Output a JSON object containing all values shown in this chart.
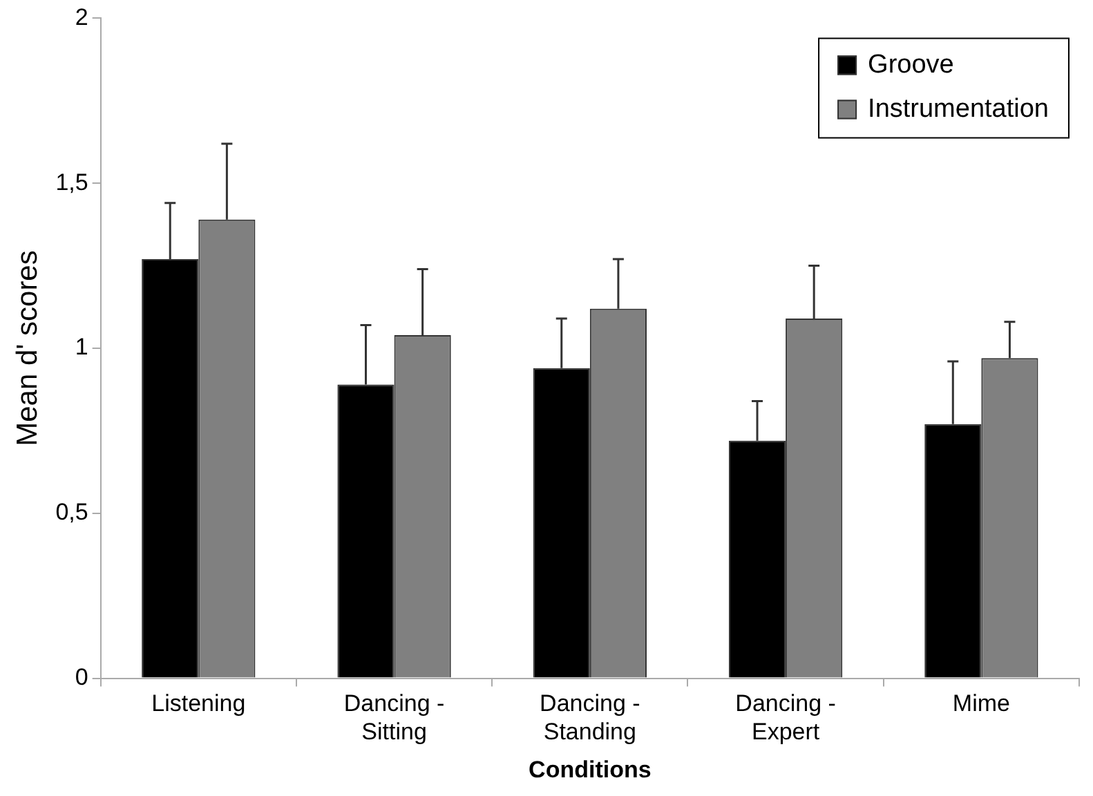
{
  "chart_data": {
    "type": "bar",
    "xlabel": "Conditions",
    "ylabel": "Mean d' scores",
    "categories": [
      "Listening",
      "Dancing - Sitting",
      "Dancing - Standing",
      "Dancing - Expert",
      "Mime"
    ],
    "series": [
      {
        "name": "Groove",
        "color": "#000000",
        "values": [
          1.27,
          0.89,
          0.94,
          0.72,
          0.77
        ],
        "errors": [
          [
            1.27,
            1.44
          ],
          [
            0.89,
            1.07
          ],
          [
            0.94,
            1.09
          ],
          [
            0.72,
            0.84
          ],
          [
            0.77,
            0.96
          ]
        ]
      },
      {
        "name": "Instrumentation",
        "color": "#808080",
        "values": [
          1.39,
          1.04,
          1.12,
          1.09,
          0.97
        ],
        "errors": [
          [
            1.39,
            1.62
          ],
          [
            1.04,
            1.24
          ],
          [
            1.12,
            1.27
          ],
          [
            1.09,
            1.25
          ],
          [
            0.97,
            1.08
          ]
        ]
      }
    ],
    "ylim": [
      0,
      2
    ],
    "yticks": [
      0,
      {
        "value": 0.5,
        "label": "0,5"
      },
      1,
      {
        "value": 1.5,
        "label": "1,5"
      },
      2
    ],
    "grid": false,
    "legend": "top right"
  }
}
